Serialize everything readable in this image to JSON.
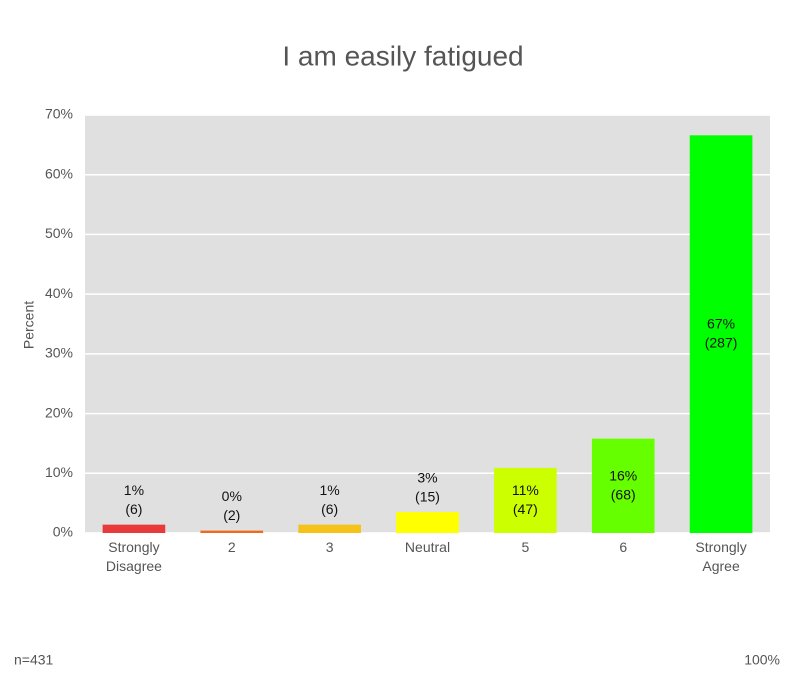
{
  "chart_data": {
    "type": "bar",
    "title": "I am easily fatigued",
    "y_label": "Percent",
    "categories": [
      "Strongly Disagree",
      "2",
      "3",
      "Neutral",
      "5",
      "6",
      "Strongly Agree"
    ],
    "values": [
      1.4,
      0.4,
      1.4,
      3.5,
      10.9,
      15.8,
      66.6
    ],
    "value_labels": [
      "1%\n(6)",
      "0%\n(2)",
      "1%\n(6)",
      "3%\n(15)",
      "11%\n(47)",
      "16%\n(68)",
      "67%\n(287)"
    ],
    "colors": [
      "#e83a3a",
      "#f06a1e",
      "#f5c21a",
      "#ffff00",
      "#ccff00",
      "#66ff00",
      "#00ff00"
    ],
    "ylim": [
      0,
      70
    ],
    "yticks": [
      {
        "value": 0,
        "label": "0%"
      },
      {
        "value": 10,
        "label": "10%"
      },
      {
        "value": 20,
        "label": "20%"
      },
      {
        "value": 30,
        "label": "30%"
      },
      {
        "value": 40,
        "label": "40%"
      },
      {
        "value": 50,
        "label": "50%"
      },
      {
        "value": 60,
        "label": "60%"
      },
      {
        "value": 70,
        "label": "70%"
      }
    ],
    "grid": true,
    "footer_left": "n=431",
    "footer_right": "100%"
  }
}
